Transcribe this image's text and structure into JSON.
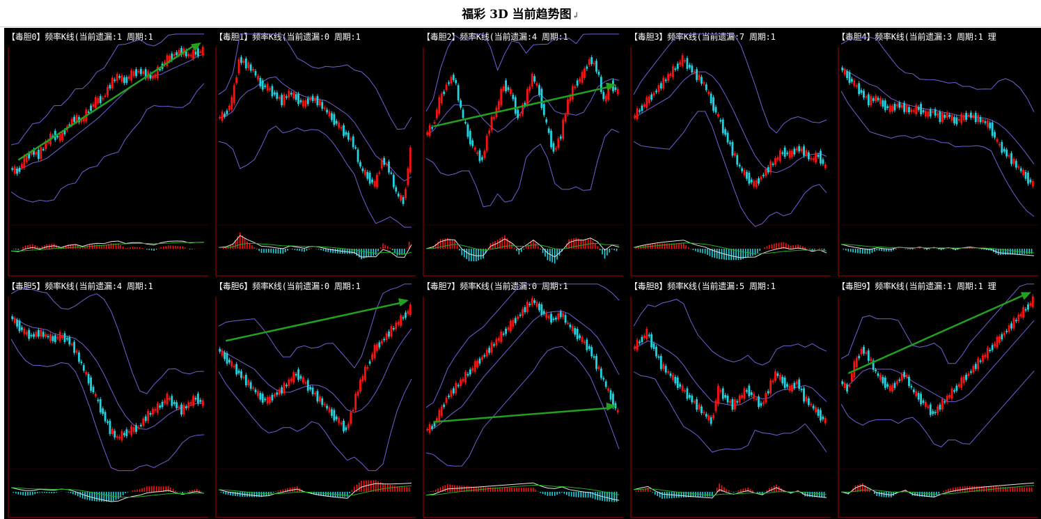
{
  "page": {
    "title": "福彩 3D 当前趋势图",
    "title_mark": "↲"
  },
  "colors": {
    "background": "#000000",
    "axis": "#b00000",
    "candle_up": "#ff1010",
    "candle_down": "#22d4e0",
    "bollinger": "#7060d8",
    "trend_arrow": "#22a020",
    "macd_diff": "#e8e8e8",
    "macd_dea": "#20b020"
  },
  "panels": [
    {
      "header": "【毒胆0】频率K线(当前遗漏:1 周期:1",
      "has_arrow": true
    },
    {
      "header": "【毒胆1】频率K线(当前遗漏:0 周期:1",
      "has_arrow": false
    },
    {
      "header": "【毒胆2】频率K线(当前遗漏:4 周期:1",
      "has_arrow": true
    },
    {
      "header": "【毒胆3】频率K线(当前遗漏:7 周期:1",
      "has_arrow": false
    },
    {
      "header": "【毒胆4】频率K线(当前遗漏:3 周期:1 理",
      "has_arrow": false
    },
    {
      "header": "【毒胆5】频率K线(当前遗漏:4 周期:1",
      "has_arrow": false
    },
    {
      "header": "【毒胆6】频率K线(当前遗漏:0 周期:1",
      "has_arrow": true
    },
    {
      "header": "【毒胆7】频率K线(当前遗漏:0 周期:1",
      "has_arrow": true
    },
    {
      "header": "【毒胆8】频率K线(当前遗漏:5 周期:1",
      "has_arrow": false
    },
    {
      "header": "【毒胆9】频率K线(当前遗漏:1 周期:1 理",
      "has_arrow": true
    }
  ],
  "chart_data": [
    {
      "type": "candlestick",
      "series": [
        {
          "values": [
            0.3,
            0.28,
            0.35,
            0.4,
            0.38,
            0.45,
            0.5,
            0.48,
            0.55,
            0.6,
            0.58,
            0.65,
            0.7,
            0.72,
            0.8,
            0.85,
            0.82,
            0.86,
            0.88,
            0.86,
            0.84,
            0.9,
            0.95,
            0.98,
            1.0,
            0.97,
            0.99,
            1.0
          ]
        }
      ]
    },
    {
      "type": "candlestick",
      "series": [
        {
          "values": [
            0.6,
            0.62,
            0.7,
            0.95,
            0.92,
            0.88,
            0.8,
            0.78,
            0.74,
            0.7,
            0.75,
            0.72,
            0.68,
            0.72,
            0.7,
            0.65,
            0.6,
            0.55,
            0.5,
            0.45,
            0.3,
            0.25,
            0.2,
            0.35,
            0.3,
            0.15,
            0.1,
            0.4
          ]
        }
      ]
    },
    {
      "type": "candlestick",
      "series": [
        {
          "values": [
            0.5,
            0.55,
            0.7,
            0.8,
            0.85,
            0.65,
            0.5,
            0.4,
            0.35,
            0.55,
            0.65,
            0.8,
            0.75,
            0.6,
            0.7,
            0.85,
            0.75,
            0.55,
            0.4,
            0.5,
            0.7,
            0.8,
            0.85,
            0.95,
            0.9,
            0.7,
            0.8,
            0.75
          ]
        }
      ]
    },
    {
      "type": "candlestick",
      "series": [
        {
          "values": [
            0.6,
            0.65,
            0.7,
            0.75,
            0.8,
            0.85,
            0.9,
            0.95,
            0.9,
            0.85,
            0.8,
            0.7,
            0.6,
            0.5,
            0.4,
            0.3,
            0.25,
            0.2,
            0.25,
            0.3,
            0.35,
            0.4,
            0.38,
            0.42,
            0.4,
            0.35,
            0.38,
            0.3
          ]
        }
      ]
    },
    {
      "type": "candlestick",
      "series": [
        {
          "values": [
            0.9,
            0.85,
            0.8,
            0.75,
            0.7,
            0.72,
            0.68,
            0.65,
            0.68,
            0.66,
            0.64,
            0.66,
            0.62,
            0.64,
            0.6,
            0.62,
            0.58,
            0.6,
            0.62,
            0.6,
            0.58,
            0.55,
            0.45,
            0.4,
            0.35,
            0.3,
            0.25,
            0.2
          ]
        }
      ]
    },
    {
      "type": "candlestick",
      "series": [
        {
          "values": [
            0.9,
            0.85,
            0.8,
            0.78,
            0.8,
            0.78,
            0.76,
            0.78,
            0.76,
            0.7,
            0.6,
            0.5,
            0.4,
            0.3,
            0.2,
            0.15,
            0.18,
            0.2,
            0.22,
            0.28,
            0.32,
            0.35,
            0.4,
            0.36,
            0.32,
            0.36,
            0.4,
            0.36
          ]
        }
      ]
    },
    {
      "type": "candlestick",
      "series": [
        {
          "values": [
            0.7,
            0.65,
            0.6,
            0.55,
            0.5,
            0.45,
            0.4,
            0.38,
            0.42,
            0.45,
            0.5,
            0.55,
            0.5,
            0.45,
            0.4,
            0.35,
            0.3,
            0.25,
            0.2,
            0.35,
            0.5,
            0.6,
            0.7,
            0.75,
            0.8,
            0.85,
            0.9,
            0.95
          ]
        }
      ]
    },
    {
      "type": "candlestick",
      "series": [
        {
          "values": [
            0.2,
            0.22,
            0.3,
            0.4,
            0.45,
            0.5,
            0.55,
            0.6,
            0.65,
            0.7,
            0.75,
            0.8,
            0.85,
            0.9,
            0.95,
            1.0,
            0.95,
            0.9,
            0.88,
            0.92,
            0.85,
            0.8,
            0.75,
            0.7,
            0.6,
            0.5,
            0.4,
            0.3
          ]
        }
      ]
    },
    {
      "type": "candlestick",
      "series": [
        {
          "values": [
            0.7,
            0.75,
            0.8,
            0.7,
            0.6,
            0.55,
            0.5,
            0.45,
            0.4,
            0.35,
            0.3,
            0.25,
            0.45,
            0.4,
            0.35,
            0.4,
            0.45,
            0.4,
            0.35,
            0.45,
            0.55,
            0.5,
            0.45,
            0.5,
            0.4,
            0.35,
            0.3,
            0.25
          ]
        }
      ]
    },
    {
      "type": "candlestick",
      "series": [
        {
          "values": [
            0.5,
            0.45,
            0.6,
            0.7,
            0.65,
            0.55,
            0.5,
            0.45,
            0.5,
            0.55,
            0.45,
            0.4,
            0.35,
            0.3,
            0.35,
            0.4,
            0.45,
            0.5,
            0.55,
            0.6,
            0.65,
            0.7,
            0.75,
            0.8,
            0.85,
            0.9,
            0.95,
            1.0
          ]
        }
      ]
    }
  ]
}
